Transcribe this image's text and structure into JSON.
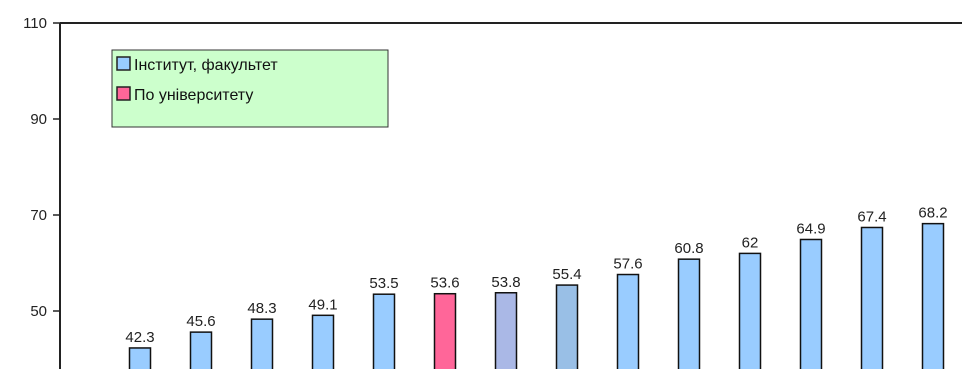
{
  "chart_data": {
    "type": "bar",
    "title": "",
    "xlabel": "",
    "ylabel": "",
    "ylim": [
      40,
      110
    ],
    "yticks": [
      50,
      70,
      90,
      110
    ],
    "grid": false,
    "legend_position": "top-left",
    "legend_background": "#ccffcc",
    "legend": [
      {
        "label": "Інститут, факультет",
        "color": "#99ccff"
      },
      {
        "label": "По університету",
        "color": "#ff6699"
      }
    ],
    "values": [
      42.3,
      45.6,
      48.3,
      49.1,
      53.5,
      53.6,
      53.8,
      55.4,
      57.6,
      60.8,
      62,
      64.9,
      67.4,
      68.2
    ],
    "value_labels": [
      "42.3",
      "45.6",
      "48.3",
      "49.1",
      "53.5",
      "53.6",
      "53.8",
      "55.4",
      "57.6",
      "60.8",
      "62",
      "64.9",
      "67.4",
      "68.2"
    ],
    "colors": [
      "#99ccff",
      "#99ccff",
      "#99ccff",
      "#99ccff",
      "#99ccff",
      "#ff6699",
      "#aab8e6",
      "#99bfe6",
      "#99ccff",
      "#99ccff",
      "#99ccff",
      "#99ccff",
      "#99ccff",
      "#99ccff"
    ]
  }
}
